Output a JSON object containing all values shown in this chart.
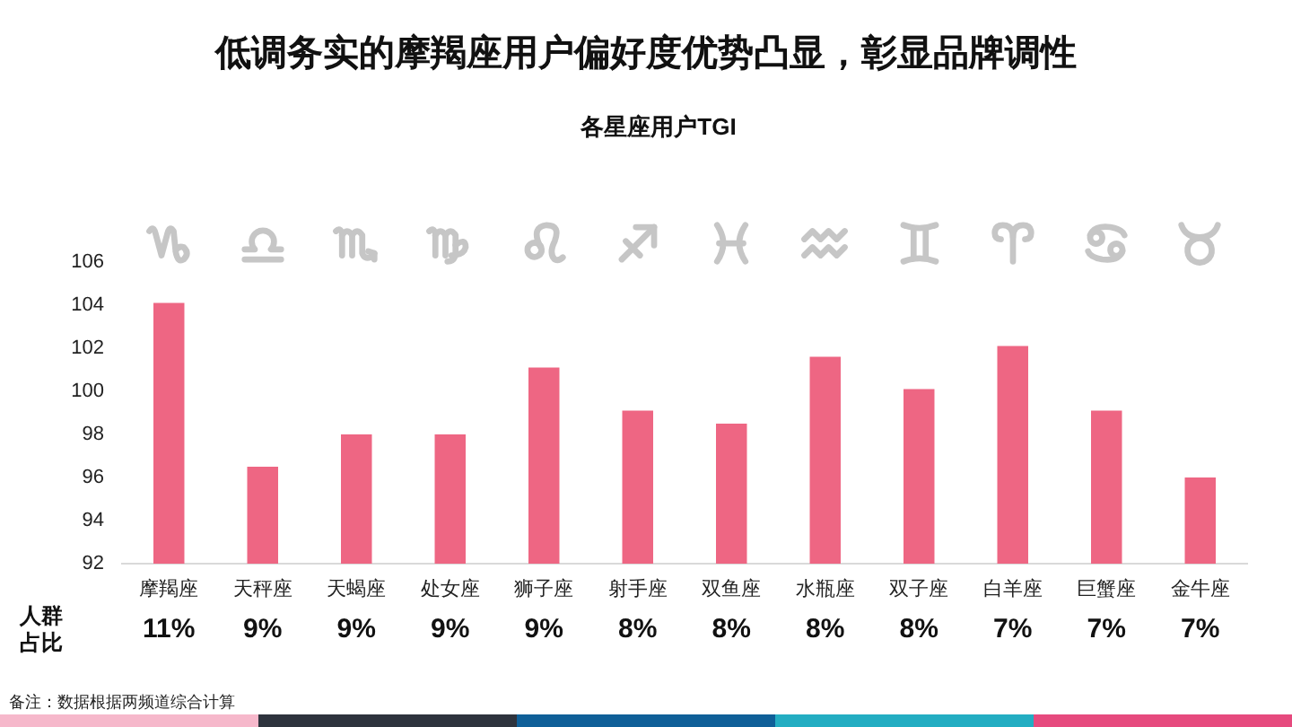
{
  "chart_data": {
    "type": "bar",
    "title": "低调务实的摩羯座用户偏好度优势凸显，彰显品牌调性",
    "subtitle": "各星座用户TGI",
    "categories": [
      "摩羯座",
      "天秤座",
      "天蝎座",
      "处女座",
      "狮子座",
      "射手座",
      "双鱼座",
      "水瓶座",
      "双子座",
      "白羊座",
      "巨蟹座",
      "金牛座"
    ],
    "values": [
      104.1,
      96.5,
      98.0,
      98.0,
      101.1,
      99.1,
      98.5,
      101.6,
      100.1,
      102.1,
      99.1,
      96.0
    ],
    "color": "#ee6683",
    "ylim": [
      92,
      106
    ],
    "yticks": [
      92,
      94,
      96,
      98,
      100,
      102,
      104,
      106
    ],
    "annotations": [
      "人群占比",
      "11%",
      "9%",
      "9%",
      "9%",
      "9%",
      "8%",
      "8%",
      "8%",
      "8%",
      "7%",
      "7%",
      "7%",
      "备注：数据根据两频道综合计算"
    ]
  }
}
